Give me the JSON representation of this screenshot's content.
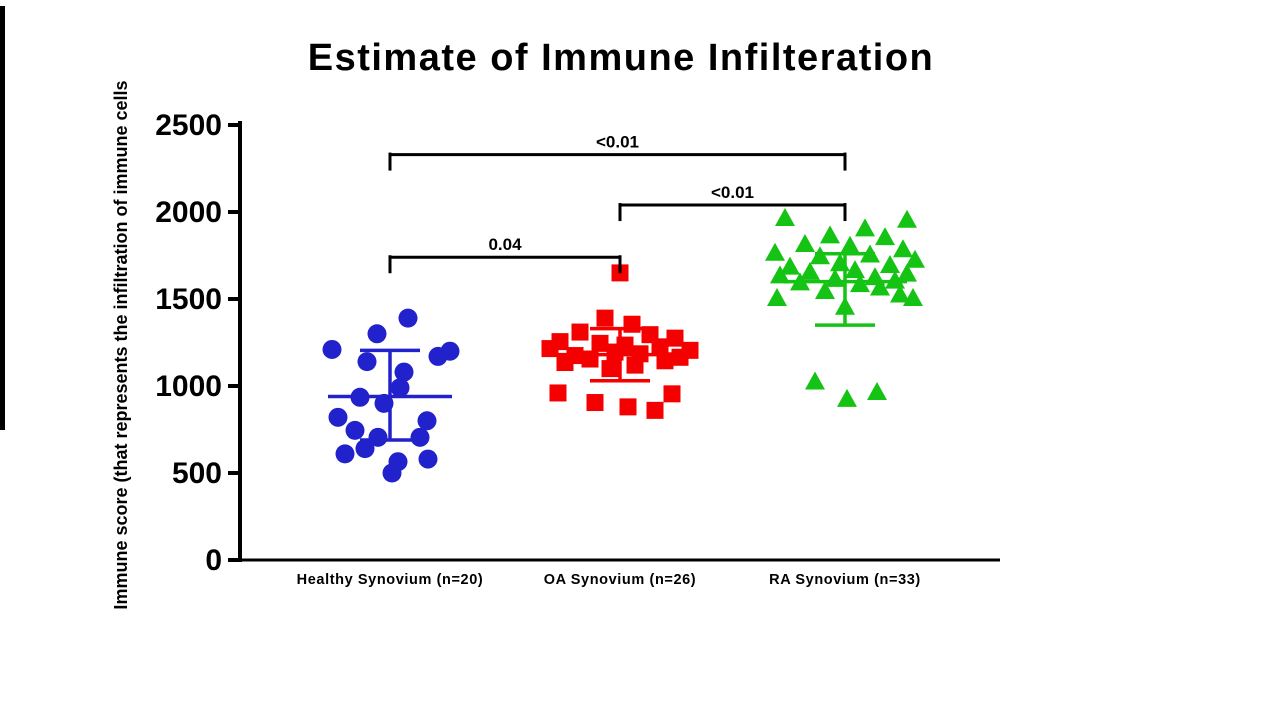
{
  "title": "Estimate of Immune Infilteration",
  "chart_data": {
    "type": "scatter",
    "title": "Estimate of Immune Infilteration",
    "ylabel": "Immune score (that represents the infiltration of immune cells",
    "xlabel": "",
    "ylim": [
      0,
      2500
    ],
    "yticks": [
      0,
      500,
      1000,
      1500,
      2000,
      2500
    ],
    "grid": false,
    "legend": "none",
    "groups": [
      {
        "label": "Healthy Synovium (n=20)",
        "marker": "circle",
        "color": "#2222cc",
        "mean": 940,
        "whisker_top": 1205,
        "whisker_bottom": 690,
        "points": [
          [
            18,
            1390
          ],
          [
            -13,
            1300
          ],
          [
            -58,
            1210
          ],
          [
            60,
            1200
          ],
          [
            48,
            1170
          ],
          [
            -23,
            1140
          ],
          [
            14,
            1080
          ],
          [
            10,
            990
          ],
          [
            -30,
            935
          ],
          [
            -6,
            900
          ],
          [
            -52,
            820
          ],
          [
            37,
            800
          ],
          [
            -35,
            745
          ],
          [
            -12,
            705
          ],
          [
            30,
            705
          ],
          [
            -25,
            640
          ],
          [
            -45,
            610
          ],
          [
            38,
            580
          ],
          [
            8,
            565
          ],
          [
            2,
            500
          ]
        ]
      },
      {
        "label": "OA Synovium (n=26)",
        "marker": "square",
        "color": "#f40000",
        "mean": 1180,
        "whisker_top": 1330,
        "whisker_bottom": 1030,
        "points": [
          [
            0,
            1650
          ],
          [
            -15,
            1390
          ],
          [
            12,
            1355
          ],
          [
            -40,
            1310
          ],
          [
            30,
            1295
          ],
          [
            55,
            1275
          ],
          [
            -60,
            1255
          ],
          [
            -20,
            1245
          ],
          [
            5,
            1235
          ],
          [
            40,
            1225
          ],
          [
            -70,
            1215
          ],
          [
            70,
            1205
          ],
          [
            -5,
            1195
          ],
          [
            20,
            1185
          ],
          [
            -45,
            1175
          ],
          [
            60,
            1165
          ],
          [
            -30,
            1155
          ],
          [
            45,
            1145
          ],
          [
            -55,
            1135
          ],
          [
            15,
            1120
          ],
          [
            -10,
            1100
          ],
          [
            -62,
            960
          ],
          [
            52,
            955
          ],
          [
            -25,
            905
          ],
          [
            8,
            880
          ],
          [
            35,
            860
          ]
        ]
      },
      {
        "label": "RA Synovium (n=33)",
        "marker": "triangle",
        "color": "#14c314",
        "mean": 1600,
        "whisker_top": 1760,
        "whisker_bottom": 1350,
        "points": [
          [
            -60,
            1960
          ],
          [
            62,
            1950
          ],
          [
            20,
            1900
          ],
          [
            -15,
            1860
          ],
          [
            40,
            1850
          ],
          [
            -40,
            1810
          ],
          [
            5,
            1800
          ],
          [
            58,
            1780
          ],
          [
            -70,
            1760
          ],
          [
            25,
            1750
          ],
          [
            -25,
            1740
          ],
          [
            70,
            1720
          ],
          [
            -5,
            1700
          ],
          [
            45,
            1690
          ],
          [
            -55,
            1680
          ],
          [
            10,
            1660
          ],
          [
            -35,
            1650
          ],
          [
            62,
            1640
          ],
          [
            -65,
            1630
          ],
          [
            30,
            1620
          ],
          [
            -10,
            1610
          ],
          [
            50,
            1600
          ],
          [
            -45,
            1590
          ],
          [
            15,
            1580
          ],
          [
            35,
            1560
          ],
          [
            -20,
            1540
          ],
          [
            55,
            1520
          ],
          [
            -68,
            1500
          ],
          [
            68,
            1500
          ],
          [
            0,
            1450
          ],
          [
            -30,
            1020
          ],
          [
            32,
            960
          ],
          [
            2,
            920
          ]
        ]
      }
    ],
    "comparisons": [
      {
        "label": "<0.01",
        "between": [
          0,
          2
        ],
        "y": 2330
      },
      {
        "label": "<0.01",
        "between": [
          1,
          2
        ],
        "y": 2040
      },
      {
        "label": "0.04",
        "between": [
          0,
          1
        ],
        "y": 1740
      }
    ]
  },
  "layout_colors": {
    "axis": "#000000",
    "background": "#ffffff"
  }
}
